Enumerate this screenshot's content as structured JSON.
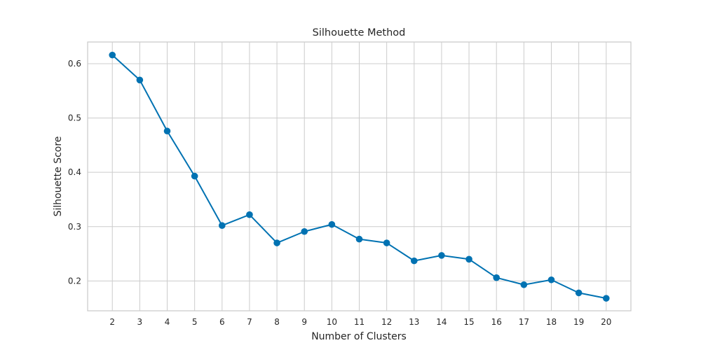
{
  "chart_data": {
    "type": "line",
    "title": "Silhouette Method",
    "xlabel": "Number of Clusters",
    "ylabel": "Silhouette Score",
    "x": [
      2,
      3,
      4,
      5,
      6,
      7,
      8,
      9,
      10,
      11,
      12,
      13,
      14,
      15,
      16,
      17,
      18,
      19,
      20
    ],
    "series": [
      {
        "values": [
          0.616,
          0.57,
          0.476,
          0.393,
          0.302,
          0.322,
          0.27,
          0.291,
          0.304,
          0.277,
          0.27,
          0.237,
          0.247,
          0.24,
          0.206,
          0.193,
          0.202,
          0.178,
          0.168
        ],
        "color": "#0072b2",
        "marker": "circle"
      }
    ],
    "xlim": [
      1.1,
      20.9
    ],
    "ylim": [
      0.145,
      0.64
    ],
    "xticks": [
      2,
      3,
      4,
      5,
      6,
      7,
      8,
      9,
      10,
      11,
      12,
      13,
      14,
      15,
      16,
      17,
      18,
      19,
      20
    ],
    "yticks": [
      0.2,
      0.3,
      0.4,
      0.5,
      0.6
    ],
    "grid": true
  }
}
